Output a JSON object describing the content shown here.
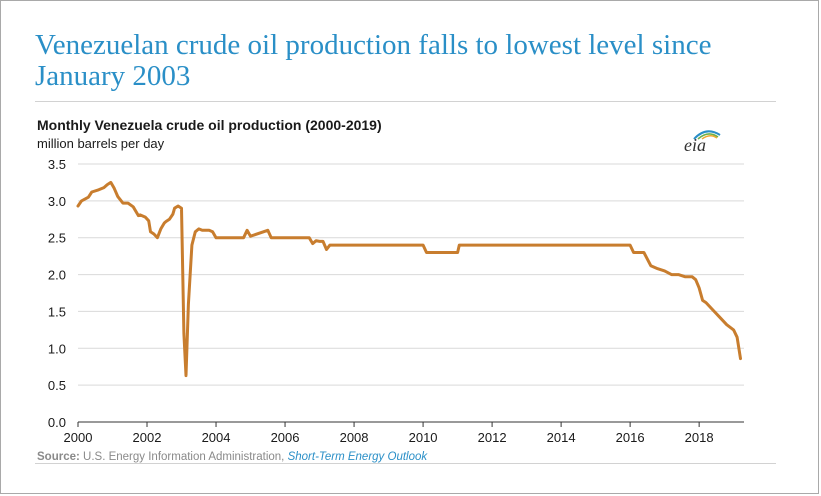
{
  "headline": "Venezuelan crude oil production falls to lowest level since January 2003",
  "chart_data": {
    "type": "line",
    "title": "Monthly Venezuela crude oil production (2000-2019)",
    "ylabel": "million barrels per day",
    "xlabel": "",
    "xlim": [
      2000,
      2019.3
    ],
    "ylim": [
      0,
      3.5
    ],
    "x_ticks": [
      "2000",
      "2002",
      "2004",
      "2006",
      "2008",
      "2010",
      "2012",
      "2014",
      "2016",
      "2018"
    ],
    "x_tick_values": [
      2000,
      2002,
      2004,
      2006,
      2008,
      2010,
      2012,
      2014,
      2016,
      2018
    ],
    "y_ticks": [
      "0.0",
      "0.5",
      "1.0",
      "1.5",
      "2.0",
      "2.5",
      "3.0",
      "3.5"
    ],
    "y_tick_values": [
      0,
      0.5,
      1.0,
      1.5,
      2.0,
      2.5,
      3.0,
      3.5
    ],
    "grid": true,
    "series": [
      {
        "name": "Venezuela crude oil production",
        "color": "#c87d2e",
        "x": [
          2000.0,
          2000.1,
          2000.3,
          2000.4,
          2000.6,
          2000.75,
          2000.85,
          2000.95,
          2001.05,
          2001.15,
          2001.3,
          2001.45,
          2001.6,
          2001.75,
          2001.8,
          2001.95,
          2002.05,
          2002.1,
          2002.2,
          2002.3,
          2002.4,
          2002.5,
          2002.55,
          2002.65,
          2002.75,
          2002.8,
          2002.9,
          2003.0,
          2003.07,
          2003.13,
          2003.2,
          2003.3,
          2003.4,
          2003.5,
          2003.6,
          2003.8,
          2003.9,
          2004.0,
          2004.4,
          2004.8,
          2004.9,
          2005.0,
          2005.5,
          2005.6,
          2006.0,
          2006.5,
          2006.7,
          2006.8,
          2006.9,
          2007.0,
          2007.1,
          2007.2,
          2007.3,
          2007.5,
          2008.0,
          2009.0,
          2010.0,
          2010.1,
          2010.5,
          2011.0,
          2011.05,
          2012.0,
          2013.0,
          2014.0,
          2015.0,
          2016.0,
          2016.1,
          2016.4,
          2016.6,
          2016.8,
          2017.0,
          2017.2,
          2017.4,
          2017.6,
          2017.8,
          2017.9,
          2018.0,
          2018.1,
          2018.2,
          2018.4,
          2018.6,
          2018.8,
          2019.0,
          2019.1,
          2019.2
        ],
        "values": [
          2.93,
          3.0,
          3.05,
          3.12,
          3.15,
          3.18,
          3.22,
          3.25,
          3.17,
          3.06,
          2.97,
          2.97,
          2.92,
          2.8,
          2.81,
          2.78,
          2.73,
          2.58,
          2.55,
          2.5,
          2.62,
          2.7,
          2.72,
          2.75,
          2.82,
          2.9,
          2.93,
          2.9,
          1.2,
          0.63,
          1.6,
          2.4,
          2.58,
          2.62,
          2.6,
          2.6,
          2.58,
          2.5,
          2.5,
          2.5,
          2.6,
          2.52,
          2.6,
          2.5,
          2.5,
          2.5,
          2.5,
          2.42,
          2.46,
          2.45,
          2.45,
          2.34,
          2.4,
          2.4,
          2.4,
          2.4,
          2.4,
          2.3,
          2.3,
          2.3,
          2.4,
          2.4,
          2.4,
          2.4,
          2.4,
          2.4,
          2.3,
          2.3,
          2.12,
          2.08,
          2.05,
          2.0,
          2.0,
          1.97,
          1.97,
          1.93,
          1.82,
          1.65,
          1.62,
          1.52,
          1.42,
          1.32,
          1.25,
          1.15,
          0.86
        ]
      }
    ]
  },
  "logo_text": "eia",
  "source": {
    "label": "Source:",
    "text": "U.S. Energy Information Administration,",
    "report": "Short-Term Energy Outlook"
  }
}
